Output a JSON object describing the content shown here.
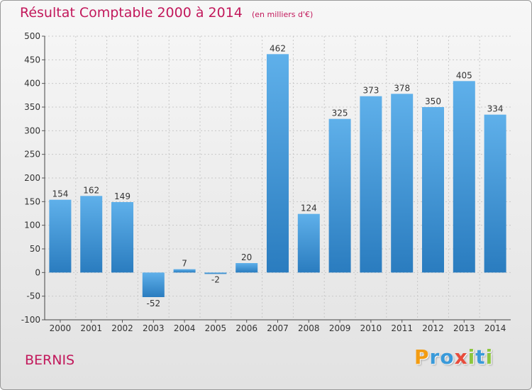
{
  "chart_data": {
    "type": "bar",
    "title": "Résultat Comptable 2000 à 2014",
    "subtitle": "(en milliers d'€)",
    "categories": [
      "2000",
      "2001",
      "2002",
      "2003",
      "2004",
      "2005",
      "2006",
      "2007",
      "2008",
      "2009",
      "2010",
      "2011",
      "2012",
      "2013",
      "2014"
    ],
    "values": [
      154,
      162,
      149,
      -52,
      7,
      -2,
      20,
      462,
      124,
      325,
      373,
      378,
      350,
      405,
      334
    ],
    "yticks": [
      500,
      450,
      400,
      350,
      300,
      250,
      200,
      150,
      100,
      50,
      0,
      -50,
      -100
    ],
    "ylim": [
      -100,
      500
    ],
    "xlabel": "",
    "ylabel": "",
    "grid": true,
    "bar_color": "#3a8fd0"
  },
  "location_label": "BERNIS",
  "logo": {
    "text": "Proxiti",
    "letters": [
      "P",
      "r",
      "o",
      "x",
      "i",
      "t",
      "i"
    ],
    "colors": [
      "#f39c12",
      "#3a9ad9",
      "#3a9ad9",
      "#e74c3c",
      "#8dc63f",
      "#3a9ad9",
      "#8dc63f"
    ]
  }
}
